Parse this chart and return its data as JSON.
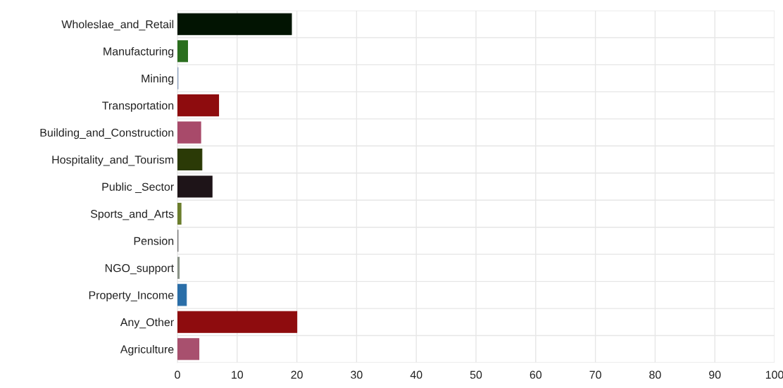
{
  "chart_data": {
    "type": "bar",
    "orientation": "horizontal",
    "categories": [
      "Wholeslae_and_Retail",
      "Manufacturing",
      "Mining",
      "Transportation",
      "Building_and_Construction",
      "Hospitality_and_Tourism",
      "Public _Sector",
      "Sports_and_Arts",
      "Pension",
      "NGO_support",
      "Property_Income",
      "Any_Other",
      "Agriculture"
    ],
    "values": [
      19.1,
      1.7,
      0.1,
      6.9,
      3.9,
      4.1,
      5.8,
      0.6,
      0.1,
      0.3,
      1.5,
      20.0,
      3.6
    ],
    "colors": [
      "#021402",
      "#2a6e1e",
      "#8fa3c0",
      "#8e0c0e",
      "#a84a6a",
      "#2b3a06",
      "#1e1418",
      "#6b7d2c",
      "#777777",
      "#8a9488",
      "#2a6ea8",
      "#8e0c0e",
      "#a8506e"
    ],
    "xlim": [
      0,
      100
    ],
    "xticks": [
      0,
      10,
      20,
      30,
      40,
      50,
      60,
      70,
      80,
      90,
      100
    ],
    "grid": true
  }
}
